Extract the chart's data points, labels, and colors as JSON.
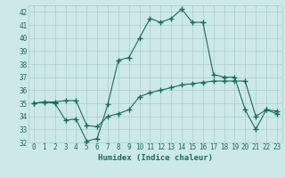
{
  "xlabel": "Humidex (Indice chaleur)",
  "xlim": [
    -0.5,
    23.5
  ],
  "ylim": [
    32,
    42.5
  ],
  "yticks": [
    32,
    33,
    34,
    35,
    36,
    37,
    38,
    39,
    40,
    41,
    42
  ],
  "xticks": [
    0,
    1,
    2,
    3,
    4,
    5,
    6,
    7,
    8,
    9,
    10,
    11,
    12,
    13,
    14,
    15,
    16,
    17,
    18,
    19,
    20,
    21,
    22,
    23
  ],
  "bg_color": "#cce9e7",
  "grid_color": "#aaccca",
  "line_color": "#1a6b5e",
  "line1_x": [
    0,
    1,
    2,
    3,
    4,
    5,
    6,
    7,
    8,
    9,
    10,
    11,
    12,
    13,
    14,
    15,
    16,
    17,
    18,
    19,
    20,
    21,
    22,
    23
  ],
  "line1_y": [
    35.0,
    35.1,
    35.0,
    33.7,
    33.8,
    32.1,
    32.3,
    34.9,
    38.3,
    38.5,
    40.0,
    41.5,
    41.2,
    41.5,
    42.2,
    41.2,
    41.2,
    37.2,
    37.0,
    37.0,
    34.5,
    33.0,
    34.5,
    34.2
  ],
  "line2_x": [
    0,
    1,
    2,
    3,
    4,
    5,
    6,
    7,
    8,
    9,
    10,
    11,
    12,
    13,
    14,
    15,
    16,
    17,
    18,
    19,
    20,
    21,
    22,
    23
  ],
  "line2_y": [
    35.0,
    35.1,
    35.1,
    35.2,
    35.2,
    33.3,
    33.2,
    34.0,
    34.2,
    34.5,
    35.5,
    35.8,
    36.0,
    36.2,
    36.4,
    36.5,
    36.6,
    36.7,
    36.7,
    36.7,
    36.7,
    34.0,
    34.5,
    34.4
  ]
}
